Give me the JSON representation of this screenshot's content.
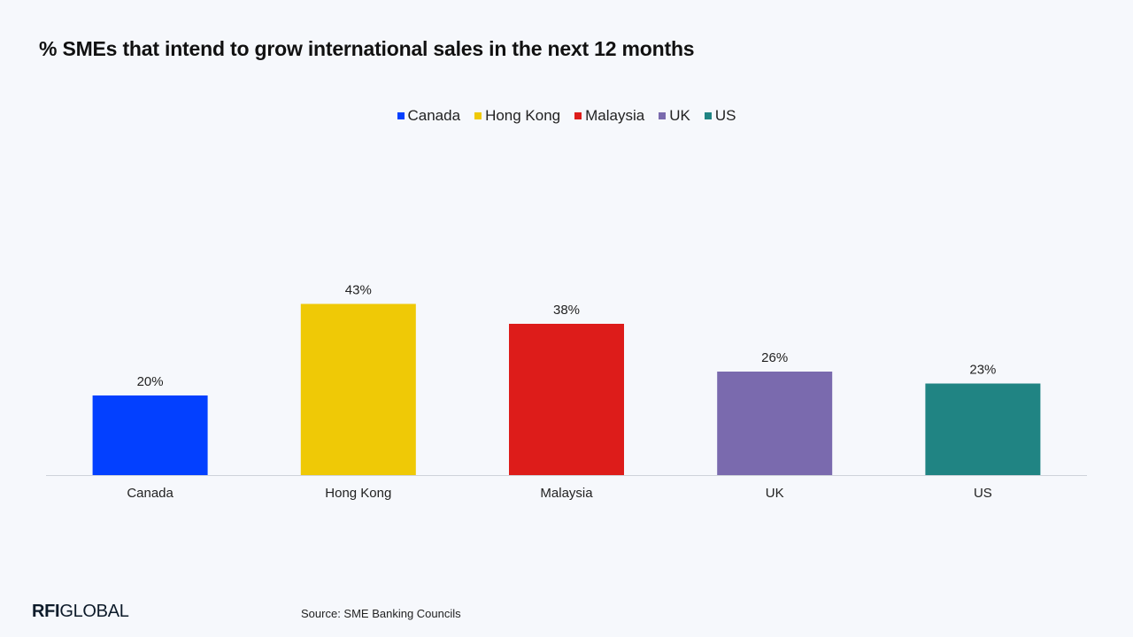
{
  "title": "% SMEs that intend to grow international sales in the next 12 months",
  "legend": [
    {
      "label": "Canada",
      "color": "#0340ff"
    },
    {
      "label": "Hong Kong",
      "color": "#efc906"
    },
    {
      "label": "Malaysia",
      "color": "#dd1c1a"
    },
    {
      "label": "UK",
      "color": "#7a6aae"
    },
    {
      "label": "US",
      "color": "#208483"
    }
  ],
  "chart_data": {
    "type": "bar",
    "title": "% SMEs that intend to grow international sales in the next 12 months",
    "categories": [
      "Canada",
      "Hong Kong",
      "Malaysia",
      "UK",
      "US"
    ],
    "values": [
      20,
      43,
      38,
      26,
      23
    ],
    "data_labels": [
      "20%",
      "43%",
      "38%",
      "26%",
      "23%"
    ],
    "colors": [
      "#0340ff",
      "#efc906",
      "#dd1c1a",
      "#7a6aae",
      "#208483"
    ],
    "xlabel": "",
    "ylabel": "",
    "ylim": [
      0,
      100
    ],
    "grid": false,
    "legend_position": "top-center"
  },
  "footer": {
    "logo_bold": "RFI",
    "logo_rest": "GLOBAL",
    "source": "Source: SME Banking Councils"
  }
}
